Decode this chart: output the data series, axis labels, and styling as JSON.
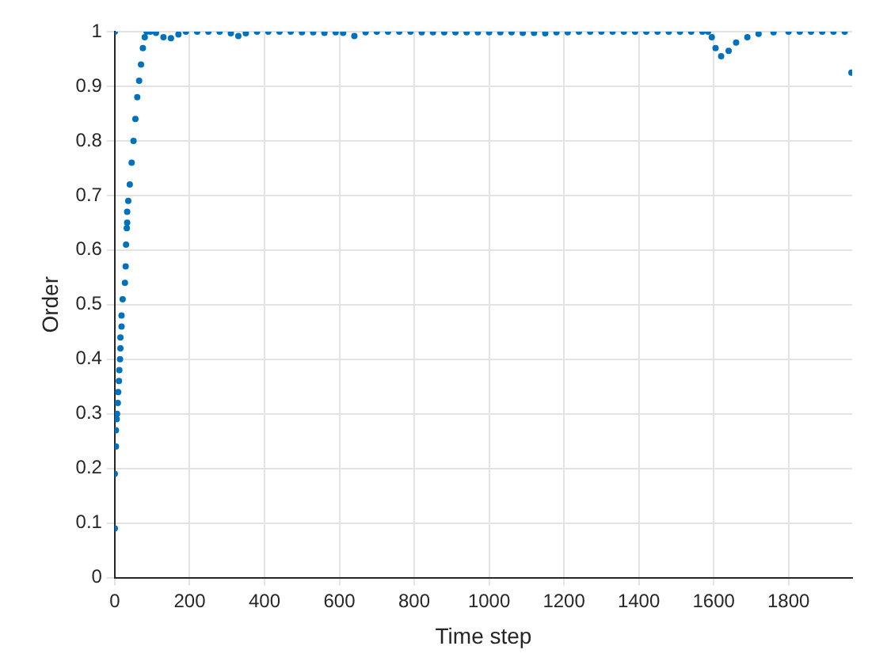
{
  "chart_data": {
    "type": "scatter",
    "xlabel": "Time step",
    "ylabel": "Order",
    "xlim": [
      0,
      1970
    ],
    "ylim": [
      0,
      1
    ],
    "xticks": [
      0,
      200,
      400,
      600,
      800,
      1000,
      1200,
      1400,
      1600,
      1800
    ],
    "yticks": [
      0,
      0.1,
      0.2,
      0.3,
      0.4,
      0.5,
      0.6,
      0.7,
      0.8,
      0.9,
      1
    ],
    "grid": true,
    "legend": false,
    "marker": "circle",
    "series": [
      {
        "color": "#0072bd",
        "x": [
          0,
          0,
          0,
          3,
          3,
          5,
          6,
          8,
          9,
          11,
          12,
          14,
          15,
          15,
          18,
          18,
          21,
          27,
          29,
          30,
          32,
          33,
          33,
          36,
          40,
          45,
          50,
          55,
          60,
          65,
          70,
          75,
          80,
          85,
          95,
          110,
          130,
          150,
          170,
          190,
          220,
          250,
          280,
          310,
          330,
          350,
          380,
          410,
          440,
          470,
          500,
          530,
          560,
          590,
          610,
          640,
          670,
          700,
          730,
          760,
          790,
          820,
          850,
          880,
          910,
          940,
          970,
          1000,
          1030,
          1060,
          1090,
          1120,
          1150,
          1180,
          1210,
          1240,
          1270,
          1300,
          1330,
          1360,
          1390,
          1420,
          1450,
          1480,
          1510,
          1540,
          1570,
          1585,
          1595,
          1605,
          1620,
          1640,
          1660,
          1690,
          1720,
          1760,
          1800,
          1830,
          1860,
          1890,
          1920,
          1950,
          1968
        ],
        "values": [
          1,
          0.09,
          0.19,
          0.24,
          0.27,
          0.29,
          0.3,
          0.32,
          0.34,
          0.36,
          0.38,
          0.4,
          0.42,
          0.44,
          0.46,
          0.48,
          0.51,
          0.54,
          0.57,
          0.61,
          0.64,
          0.65,
          0.67,
          0.69,
          0.72,
          0.76,
          0.8,
          0.84,
          0.88,
          0.91,
          0.94,
          0.97,
          0.99,
          1,
          1,
          0.998,
          0.99,
          0.988,
          0.995,
          1,
          1,
          1,
          1,
          0.997,
          0.992,
          0.997,
          1,
          1,
          1,
          1,
          0.999,
          0.999,
          0.998,
          0.999,
          0.998,
          0.992,
          0.999,
          1,
          1,
          1,
          1,
          0.999,
          0.999,
          0.999,
          0.999,
          0.999,
          0.999,
          0.999,
          0.999,
          0.999,
          0.998,
          0.998,
          0.997,
          0.999,
          0.999,
          1,
          1,
          1,
          1,
          1,
          1,
          1,
          1,
          1,
          1,
          1,
          1,
          1,
          0.99,
          0.97,
          0.955,
          0.965,
          0.98,
          0.99,
          0.996,
          0.999,
          1,
          1,
          1,
          1,
          1,
          1,
          0.925
        ]
      }
    ]
  }
}
